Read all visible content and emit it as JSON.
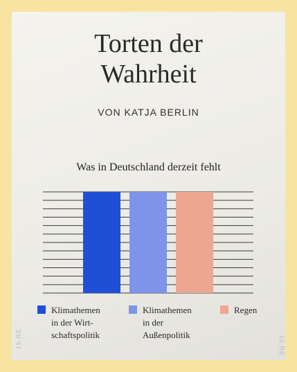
{
  "header": {
    "title_line1": "Torten der",
    "title_line2": "Wahrheit",
    "byline": "VON KATJA BERLIN"
  },
  "watermark": "15.RE",
  "chart_data": {
    "type": "bar",
    "title": "Was in Deutschland derzeit fehlt",
    "categories": [
      "Klimathemen\nin der Wirt-\nschaftspolitik",
      "Klimathemen\nin der\nAußenpolitik",
      "Regen"
    ],
    "values": [
      1,
      1,
      1
    ],
    "ylim": [
      0,
      1
    ],
    "grid": true,
    "grid_lines": 13,
    "colors": [
      "#1f4fd6",
      "#7d94e8",
      "#eca792"
    ],
    "legend_position": "bottom"
  }
}
